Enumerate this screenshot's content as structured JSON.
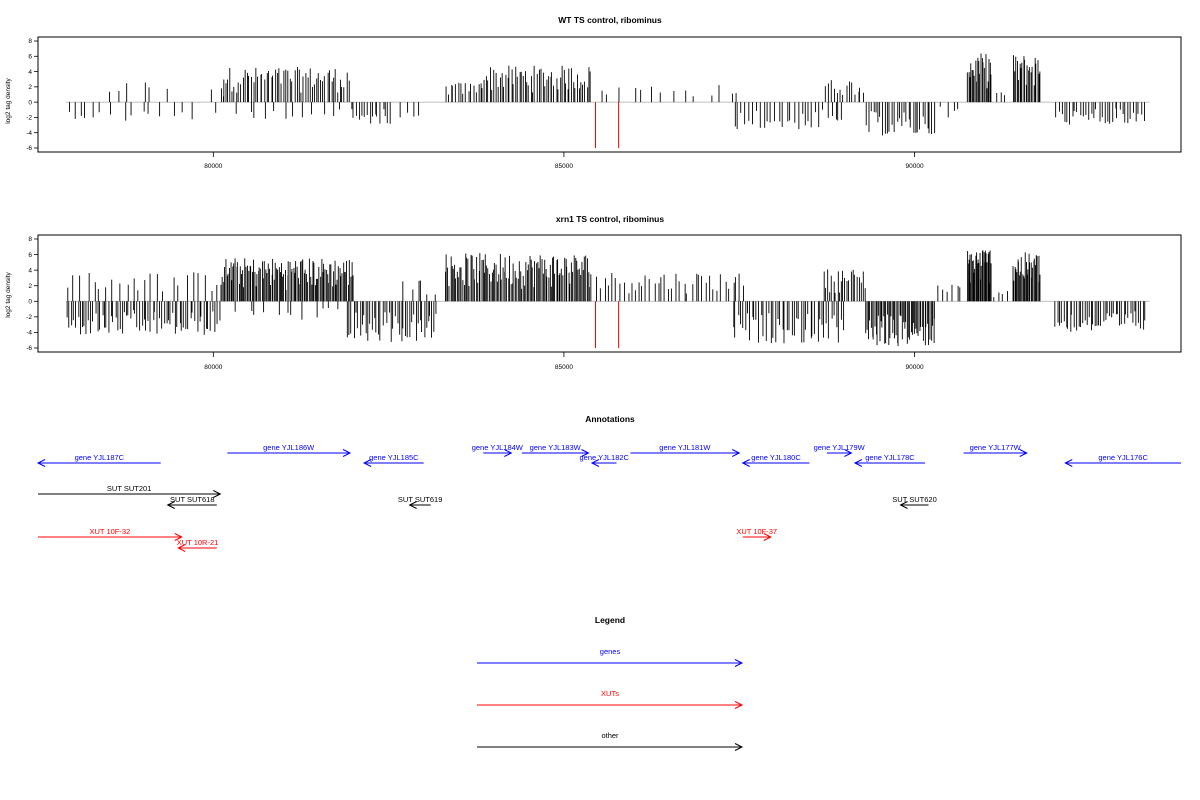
{
  "chart_data": [
    {
      "type": "bar",
      "title": "WT TS control, ribominus",
      "ylabel": "log2 tag density",
      "ylim": [
        -6,
        8
      ],
      "xlim": [
        77500,
        93800
      ],
      "yticks": [
        "-6",
        "-4",
        "-2",
        "0",
        "2",
        "4",
        "6",
        "8"
      ],
      "xticks": [
        {
          "value": 80000,
          "label": "80000"
        },
        {
          "value": 85000,
          "label": "85000"
        },
        {
          "value": 90000,
          "label": "90000"
        }
      ],
      "series_color": "#000000",
      "highlight_color": "#ff0000",
      "highlight_bars": [
        {
          "x": 85450,
          "y": -6
        },
        {
          "x": 85780,
          "y": -6
        }
      ],
      "segments": [
        {
          "from": 77900,
          "to": 78400,
          "dir": -1,
          "density": 6,
          "amp": 2.2
        },
        {
          "from": 78400,
          "to": 79400,
          "dir": 1,
          "density": 6,
          "amp": 2.8
        },
        {
          "from": 78500,
          "to": 79600,
          "dir": -1,
          "density": 8,
          "amp": 2.6
        },
        {
          "from": 79600,
          "to": 80100,
          "dir": -1,
          "density": 2,
          "amp": 2.4
        },
        {
          "from": 79900,
          "to": 80200,
          "dir": 1,
          "density": 2,
          "amp": 1.8
        },
        {
          "from": 80100,
          "to": 81950,
          "dir": 1,
          "density": 60,
          "amp": 4.6
        },
        {
          "from": 80300,
          "to": 81900,
          "dir": -1,
          "density": 12,
          "amp": 2.2
        },
        {
          "from": 81950,
          "to": 82550,
          "dir": -1,
          "density": 16,
          "amp": 2.9
        },
        {
          "from": 82600,
          "to": 83000,
          "dir": -1,
          "density": 4,
          "amp": 2.0
        },
        {
          "from": 83300,
          "to": 83800,
          "dir": 1,
          "density": 14,
          "amp": 2.6
        },
        {
          "from": 83800,
          "to": 85400,
          "dir": 1,
          "density": 58,
          "amp": 4.8
        },
        {
          "from": 85450,
          "to": 87600,
          "dir": 1,
          "density": 14,
          "amp": 2.3
        },
        {
          "from": 87400,
          "to": 89000,
          "dir": -1,
          "density": 30,
          "amp": 3.6
        },
        {
          "from": 88700,
          "to": 89300,
          "dir": 1,
          "density": 14,
          "amp": 3.0
        },
        {
          "from": 89300,
          "to": 90300,
          "dir": -1,
          "density": 30,
          "amp": 4.4
        },
        {
          "from": 90300,
          "to": 90700,
          "dir": -1,
          "density": 4,
          "amp": 2.0
        },
        {
          "from": 90750,
          "to": 91100,
          "dir": 1,
          "density": 22,
          "amp": 6.4
        },
        {
          "from": 91100,
          "to": 91350,
          "dir": 1,
          "density": 3,
          "amp": 1.5
        },
        {
          "from": 91400,
          "to": 91800,
          "dir": 1,
          "density": 22,
          "amp": 6.3
        },
        {
          "from": 92000,
          "to": 93300,
          "dir": -1,
          "density": 34,
          "amp": 3.0
        }
      ]
    },
    {
      "type": "bar",
      "title": "xrn1 TS control, ribominus",
      "ylabel": "log2 tag density",
      "ylim": [
        -6,
        8
      ],
      "xlim": [
        77500,
        93800
      ],
      "yticks": [
        "-6",
        "-4",
        "-2",
        "0",
        "2",
        "4",
        "6",
        "8"
      ],
      "xticks": [
        {
          "value": 80000,
          "label": "80000"
        },
        {
          "value": 85000,
          "label": "85000"
        },
        {
          "value": 90000,
          "label": "90000"
        }
      ],
      "series_color": "#000000",
      "highlight_color": "#ff0000",
      "highlight_bars": [
        {
          "x": 85450,
          "y": -6
        },
        {
          "x": 85780,
          "y": -6
        }
      ],
      "segments": [
        {
          "from": 77900,
          "to": 80100,
          "dir": -1,
          "density": 70,
          "amp": 4.4
        },
        {
          "from": 77900,
          "to": 80100,
          "dir": 1,
          "density": 24,
          "amp": 3.8
        },
        {
          "from": 80100,
          "to": 82000,
          "dir": 1,
          "density": 110,
          "amp": 5.6
        },
        {
          "from": 80300,
          "to": 81900,
          "dir": -1,
          "density": 12,
          "amp": 2.4
        },
        {
          "from": 81900,
          "to": 83200,
          "dir": -1,
          "density": 44,
          "amp": 5.3
        },
        {
          "from": 82700,
          "to": 83200,
          "dir": 1,
          "density": 6,
          "amp": 3.0
        },
        {
          "from": 83300,
          "to": 85400,
          "dir": 1,
          "density": 110,
          "amp": 6.2
        },
        {
          "from": 85450,
          "to": 87600,
          "dir": 1,
          "density": 40,
          "amp": 3.8
        },
        {
          "from": 87400,
          "to": 89000,
          "dir": -1,
          "density": 48,
          "amp": 5.4
        },
        {
          "from": 88700,
          "to": 89300,
          "dir": 1,
          "density": 22,
          "amp": 4.2
        },
        {
          "from": 89300,
          "to": 90300,
          "dir": -1,
          "density": 56,
          "amp": 5.8
        },
        {
          "from": 90300,
          "to": 90700,
          "dir": 1,
          "density": 6,
          "amp": 2.2
        },
        {
          "from": 90750,
          "to": 91100,
          "dir": 1,
          "density": 30,
          "amp": 7.0
        },
        {
          "from": 91100,
          "to": 91350,
          "dir": 1,
          "density": 4,
          "amp": 1.8
        },
        {
          "from": 91400,
          "to": 91800,
          "dir": 1,
          "density": 30,
          "amp": 6.3
        },
        {
          "from": 92000,
          "to": 93300,
          "dir": -1,
          "density": 44,
          "amp": 4.0
        }
      ]
    }
  ],
  "annotations": {
    "title": "Annotations",
    "features": [
      {
        "label": "gene YJL187C",
        "kind": "gene",
        "strand": "-",
        "start": 77500,
        "end": 79250,
        "row": 1
      },
      {
        "label": "gene YJL186W",
        "kind": "gene",
        "strand": "+",
        "start": 80200,
        "end": 81950,
        "row": 0
      },
      {
        "label": "gene YJL185C",
        "kind": "gene",
        "strand": "-",
        "start": 82150,
        "end": 83000,
        "row": 1
      },
      {
        "label": "gene YJL184W",
        "kind": "gene",
        "strand": "+",
        "start": 83850,
        "end": 84250,
        "row": 0
      },
      {
        "label": "gene YJL183W",
        "kind": "gene",
        "strand": "+",
        "start": 84400,
        "end": 85350,
        "row": 0
      },
      {
        "label": "gene YJL182C",
        "kind": "gene",
        "strand": "-",
        "start": 85400,
        "end": 85750,
        "row": 1
      },
      {
        "label": "gene YJL181W",
        "kind": "gene",
        "strand": "+",
        "start": 85950,
        "end": 87500,
        "row": 0
      },
      {
        "label": "gene YJL180C",
        "kind": "gene",
        "strand": "-",
        "start": 87550,
        "end": 88500,
        "row": 1
      },
      {
        "label": "gene YJL179W",
        "kind": "gene",
        "strand": "+",
        "start": 88750,
        "end": 89100,
        "row": 0
      },
      {
        "label": "gene YJL178C",
        "kind": "gene",
        "strand": "-",
        "start": 89150,
        "end": 90150,
        "row": 1
      },
      {
        "label": "gene YJL177W",
        "kind": "gene",
        "strand": "+",
        "start": 90700,
        "end": 91600,
        "row": 0
      },
      {
        "label": "gene YJL176C",
        "kind": "gene",
        "strand": "-",
        "start": 92150,
        "end": 93800,
        "row": 1
      },
      {
        "label": "SUT SUT201",
        "kind": "other",
        "strand": "+",
        "start": 77500,
        "end": 80100,
        "row": 3
      },
      {
        "label": "SUT SUT618",
        "kind": "other",
        "strand": "-",
        "start": 79350,
        "end": 80050,
        "row": 4
      },
      {
        "label": "SUT SUT619",
        "kind": "other",
        "strand": "-",
        "start": 82800,
        "end": 83100,
        "row": 4
      },
      {
        "label": "SUT SUT620",
        "kind": "other",
        "strand": "-",
        "start": 89800,
        "end": 90200,
        "row": 4
      },
      {
        "label": "XUT 10F-32",
        "kind": "xut",
        "strand": "+",
        "start": 77500,
        "end": 79550,
        "row": 6
      },
      {
        "label": "XUT 10R-21",
        "kind": "xut",
        "strand": "-",
        "start": 79500,
        "end": 80050,
        "row": 7
      },
      {
        "label": "XUT 10F-37",
        "kind": "xut",
        "strand": "+",
        "start": 87550,
        "end": 87950,
        "row": 6
      }
    ]
  },
  "legend": {
    "title": "Legend",
    "items": [
      {
        "label": "genes",
        "kind": "gene"
      },
      {
        "label": "XUTs",
        "kind": "xut"
      },
      {
        "label": "other",
        "kind": "other"
      }
    ]
  },
  "colors": {
    "gene": "#0000ff",
    "xut": "#ff0000",
    "other": "#000000",
    "axis": "#000000",
    "baseline": "#aaaaaa"
  }
}
